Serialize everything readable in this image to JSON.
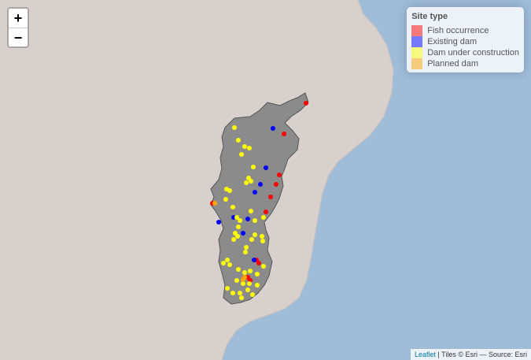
{
  "map": {
    "zoom_in_label": "+",
    "zoom_out_label": "−",
    "colors": {
      "ocean": "#9fbcd9",
      "land": "#d8d0cc",
      "basin_fill": "#7f7f7f",
      "basin_stroke": "#555555"
    }
  },
  "legend": {
    "title": "Site type",
    "items": [
      {
        "label": "Fish occurrence",
        "color": "#ff0000"
      },
      {
        "label": "Existing dam",
        "color": "#0000ff"
      },
      {
        "label": "Dam under construction",
        "color": "#ffff00"
      },
      {
        "label": "Planned dam",
        "color": "#ffa500"
      }
    ]
  },
  "attribution": {
    "leaflet": "Leaflet",
    "tiles": " | Tiles © Esri — Source: Esri"
  }
}
